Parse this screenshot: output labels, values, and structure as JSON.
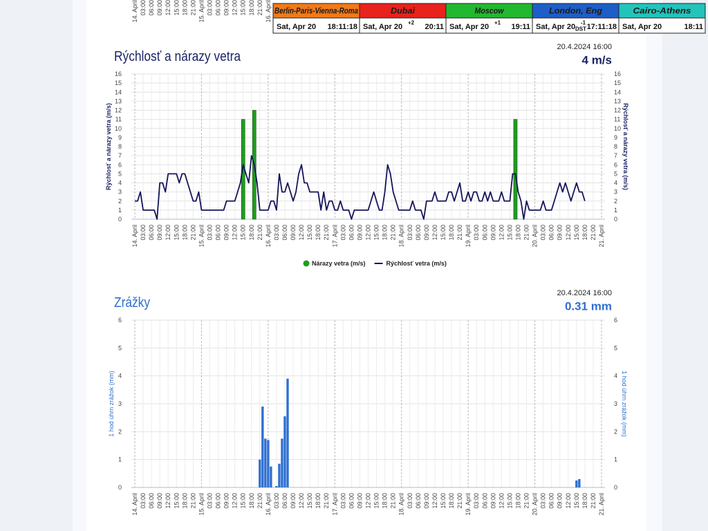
{
  "clocks": [
    {
      "city": "Berlin-Paris-Vienna-Roma",
      "color": "#f07a1a",
      "date": "Sat, Apr 20",
      "time": "18:11:18"
    },
    {
      "city": "Dubai",
      "color": "#e8221c",
      "date": "Sat, Apr 20",
      "offset": "+2",
      "time": "20:11"
    },
    {
      "city": "Moscow",
      "color": "#22b830",
      "date": "Sat, Apr 20",
      "offset": "+1",
      "time": "19:11"
    },
    {
      "city": "London, Eng",
      "color": "#1e5ec8",
      "date": "Sat, Apr 20",
      "offset": "-1",
      "dst": "DST",
      "time": "17:11:18"
    },
    {
      "city": "Cairo-Athens",
      "color": "#22c4bc",
      "date": "Sat, Apr 20",
      "time": "18:11"
    }
  ],
  "chart_data": [
    {
      "type": "line",
      "title": "Rýchlosť a nárazy vetra",
      "timestamp": "20.4.2024 16:00",
      "current": "4 m/s",
      "accent": "#1c2466",
      "ylabel": "Rýchlosť a nárazy vetra (m/s)",
      "ylim": [
        0,
        16
      ],
      "yticks": [
        0,
        1,
        2,
        3,
        4,
        5,
        6,
        7,
        8,
        9,
        10,
        11,
        12,
        13,
        14,
        15,
        16
      ],
      "grid": true,
      "legend": "bottom",
      "categories": [
        "14. April",
        null,
        null,
        "03:00",
        null,
        null,
        "06:00",
        null,
        null,
        "09:00",
        null,
        null,
        "12:00",
        null,
        null,
        "15:00",
        null,
        null,
        "18:00",
        null,
        null,
        "21:00",
        null,
        null,
        "15. April",
        null,
        null,
        "03:00",
        null,
        null,
        "06:00",
        null,
        null,
        "09:00",
        null,
        null,
        "12:00",
        null,
        null,
        "15:00",
        null,
        null,
        "18:00",
        null,
        null,
        "21:00",
        null,
        null,
        "16. April",
        null,
        null,
        "03:00",
        null,
        null,
        "06:00",
        null,
        null,
        "09:00",
        null,
        null,
        "12:00",
        null,
        null,
        "15:00",
        null,
        null,
        "18:00",
        null,
        null,
        "21:00",
        null,
        null,
        "17. April",
        null,
        null,
        "03:00",
        null,
        null,
        "06:00",
        null,
        null,
        "09:00",
        null,
        null,
        "12:00",
        null,
        null,
        "15:00",
        null,
        null,
        "18:00",
        null,
        null,
        "21:00",
        null,
        null,
        "18. April",
        null,
        null,
        "03:00",
        null,
        null,
        "06:00",
        null,
        null,
        "09:00",
        null,
        null,
        "12:00",
        null,
        null,
        "15:00",
        null,
        null,
        "18:00",
        null,
        null,
        "21:00",
        null,
        null,
        "19. April",
        null,
        null,
        "03:00",
        null,
        null,
        "06:00",
        null,
        null,
        "09:00",
        null,
        null,
        "12:00",
        null,
        null,
        "15:00",
        null,
        null,
        "18:00",
        null,
        null,
        "21:00",
        null,
        null,
        "20. April",
        null,
        null,
        "03:00",
        null,
        null,
        "06:00",
        null,
        null,
        "09:00",
        null,
        null,
        "12:00",
        null,
        null,
        "15:00",
        null,
        null,
        "18:00",
        null,
        null,
        "21:00",
        null,
        null,
        "21. April"
      ],
      "series": [
        {
          "name": "Nárazy vetra (m/s)",
          "type": "bar",
          "color": "#1e9e1e",
          "values": [
            null,
            null,
            null,
            null,
            null,
            null,
            null,
            null,
            null,
            null,
            null,
            null,
            null,
            null,
            null,
            null,
            null,
            null,
            null,
            null,
            null,
            null,
            null,
            null,
            null,
            null,
            null,
            null,
            null,
            null,
            null,
            null,
            null,
            null,
            null,
            null,
            null,
            null,
            null,
            11,
            null,
            null,
            null,
            12,
            null,
            null,
            null,
            null,
            null,
            null,
            null,
            null,
            null,
            null,
            null,
            null,
            null,
            null,
            null,
            null,
            null,
            null,
            null,
            null,
            null,
            null,
            null,
            null,
            null,
            null,
            null,
            null,
            null,
            null,
            null,
            null,
            null,
            null,
            null,
            null,
            null,
            null,
            null,
            null,
            null,
            null,
            null,
            null,
            null,
            null,
            null,
            null,
            null,
            null,
            null,
            null,
            null,
            null,
            null,
            null,
            null,
            null,
            null,
            null,
            null,
            null,
            null,
            null,
            null,
            null,
            null,
            null,
            null,
            null,
            null,
            null,
            null,
            null,
            null,
            null,
            null,
            null,
            null,
            null,
            null,
            null,
            null,
            null,
            null,
            null,
            null,
            null,
            null,
            null,
            null,
            null,
            null,
            11,
            null,
            null,
            null,
            null,
            null,
            null,
            null,
            null,
            null,
            null,
            null,
            null,
            null,
            null,
            null,
            null,
            null,
            null,
            null,
            null,
            null,
            null,
            null,
            null,
            null,
            null,
            null,
            null,
            null,
            null,
            null
          ]
        },
        {
          "name": "Rýchlosť vetra (m/s)",
          "type": "line",
          "color": "#14145a",
          "values": [
            2,
            2,
            3,
            1,
            1,
            1,
            1,
            1,
            0,
            4,
            4,
            3,
            5,
            5,
            5,
            5,
            4,
            5,
            5,
            4,
            3,
            2,
            2,
            3,
            1,
            1,
            1,
            1,
            1,
            1,
            1,
            1,
            1,
            2,
            2,
            2,
            2,
            3,
            4,
            6,
            5,
            4,
            7,
            6,
            4,
            1,
            1,
            1,
            1,
            2,
            2,
            1,
            5,
            3,
            3,
            4,
            3,
            2,
            3,
            5,
            6,
            4,
            4,
            3,
            3,
            3,
            3,
            1,
            3,
            1,
            2,
            2,
            1,
            1,
            2,
            1,
            1,
            1,
            0,
            1,
            1,
            1,
            1,
            1,
            1,
            2,
            3,
            2,
            1,
            1,
            3,
            6,
            5,
            3,
            2,
            1,
            1,
            1,
            1,
            1,
            2,
            1,
            1,
            1,
            0,
            2,
            2,
            2,
            3,
            2,
            2,
            2,
            2,
            3,
            3,
            2,
            3,
            4,
            2,
            2,
            3,
            2,
            3,
            3,
            2,
            2,
            3,
            2,
            3,
            2,
            2,
            2,
            3,
            2,
            2,
            2,
            5,
            5,
            3,
            2,
            0,
            2,
            1,
            1,
            1,
            1,
            1,
            2,
            1,
            1,
            1,
            2,
            3,
            4,
            3,
            4,
            3,
            2,
            3,
            4,
            3,
            3,
            2,
            null,
            null,
            null,
            null,
            null,
            null
          ]
        }
      ]
    },
    {
      "type": "bar",
      "title": "Zrážky",
      "timestamp": "20.4.2024 16:00",
      "current": "0.31 mm",
      "accent": "#2f6fd0",
      "ylabel": "1 hod úhrn zrážok (mm)",
      "ylim": [
        0,
        6
      ],
      "yticks": [
        0,
        1,
        2,
        3,
        4,
        5,
        6
      ],
      "grid": true,
      "categories": [
        "14. April",
        null,
        null,
        "03:00",
        null,
        null,
        "06:00",
        null,
        null,
        "09:00",
        null,
        null,
        "12:00",
        null,
        null,
        "15:00",
        null,
        null,
        "18:00",
        null,
        null,
        "21:00",
        null,
        null,
        "15. April",
        null,
        null,
        "03:00",
        null,
        null,
        "06:00",
        null,
        null,
        "09:00",
        null,
        null,
        "12:00",
        null,
        null,
        "15:00",
        null,
        null,
        "18:00",
        null,
        null,
        "21:00",
        null,
        null,
        "16. April",
        null,
        null,
        "03:00",
        null,
        null,
        "06:00",
        null,
        null,
        "09:00",
        null,
        null,
        "12:00",
        null,
        null,
        "15:00",
        null,
        null,
        "18:00",
        null,
        null,
        "21:00",
        null,
        null,
        "17. April",
        null,
        null,
        "03:00",
        null,
        null,
        "06:00",
        null,
        null,
        "09:00",
        null,
        null,
        "12:00",
        null,
        null,
        "15:00",
        null,
        null,
        "18:00",
        null,
        null,
        "21:00",
        null,
        null,
        "18. April",
        null,
        null,
        "03:00",
        null,
        null,
        "06:00",
        null,
        null,
        "09:00",
        null,
        null,
        "12:00",
        null,
        null,
        "15:00",
        null,
        null,
        "18:00",
        null,
        null,
        "21:00",
        null,
        null,
        "19. April",
        null,
        null,
        "03:00",
        null,
        null,
        "06:00",
        null,
        null,
        "09:00",
        null,
        null,
        "12:00",
        null,
        null,
        "15:00",
        null,
        null,
        "18:00",
        null,
        null,
        "21:00",
        null,
        null,
        "20. April",
        null,
        null,
        "03:00",
        null,
        null,
        "06:00",
        null,
        null,
        "09:00",
        null,
        null,
        "12:00",
        null,
        null,
        "15:00",
        null,
        null,
        "18:00",
        null,
        null,
        "21:00",
        null,
        null,
        "21. April"
      ],
      "series": [
        {
          "type": "bar",
          "color": "#2f6fd0",
          "values": [
            null,
            null,
            null,
            null,
            null,
            null,
            null,
            null,
            null,
            null,
            null,
            null,
            null,
            null,
            null,
            null,
            null,
            null,
            null,
            null,
            null,
            null,
            null,
            null,
            null,
            null,
            null,
            null,
            null,
            null,
            null,
            null,
            null,
            null,
            null,
            null,
            null,
            null,
            null,
            null,
            null,
            null,
            null,
            null,
            null,
            1,
            2.9,
            1.75,
            1.7,
            0.75,
            null,
            0.05,
            0.85,
            1.75,
            2.55,
            3.9,
            null,
            null,
            null,
            null,
            null,
            null,
            null,
            null,
            null,
            null,
            null,
            null,
            null,
            null,
            null,
            null,
            null,
            null,
            null,
            null,
            null,
            null,
            null,
            null,
            null,
            null,
            null,
            null,
            null,
            null,
            null,
            null,
            null,
            null,
            null,
            null,
            null,
            null,
            null,
            null,
            null,
            null,
            null,
            null,
            null,
            null,
            null,
            null,
            null,
            null,
            null,
            null,
            null,
            null,
            null,
            null,
            null,
            null,
            null,
            null,
            null,
            null,
            null,
            null,
            null,
            null,
            null,
            null,
            null,
            null,
            null,
            null,
            null,
            null,
            null,
            null,
            null,
            null,
            null,
            null,
            null,
            null,
            null,
            null,
            null,
            null,
            null,
            null,
            null,
            null,
            null,
            null,
            null,
            null,
            null,
            null,
            null,
            null,
            null,
            null,
            null,
            null,
            null,
            0.25,
            0.3,
            null,
            null,
            null,
            null,
            null,
            null,
            null,
            null
          ]
        }
      ]
    }
  ]
}
